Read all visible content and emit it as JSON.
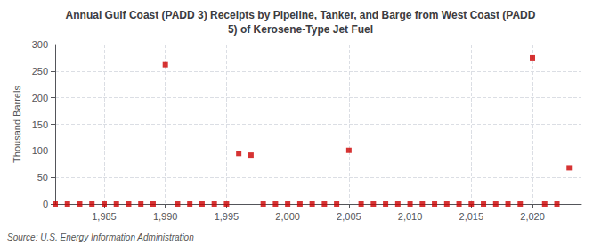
{
  "chart_data": {
    "type": "scatter",
    "title": "Annual Gulf Coast (PADD 3) Receipts by Pipeline, Tanker, and Barge from West Coast (PADD\n5) of Kerosene-Type Jet Fuel",
    "ylabel": "Thousand Barrels",
    "annotation": "Source: U.S. Energy Information Administration",
    "x": [
      1981,
      1982,
      1983,
      1984,
      1985,
      1986,
      1987,
      1988,
      1989,
      1990,
      1991,
      1992,
      1993,
      1994,
      1995,
      1996,
      1997,
      1998,
      1999,
      2000,
      2001,
      2002,
      2003,
      2004,
      2005,
      2006,
      2007,
      2008,
      2009,
      2010,
      2011,
      2012,
      2013,
      2014,
      2015,
      2016,
      2017,
      2018,
      2019,
      2020,
      2021,
      2022,
      2023
    ],
    "values": [
      0,
      0,
      0,
      0,
      0,
      0,
      0,
      0,
      0,
      262,
      0,
      0,
      0,
      0,
      0,
      95,
      92,
      0,
      0,
      0,
      0,
      0,
      0,
      0,
      101,
      0,
      0,
      0,
      0,
      0,
      0,
      0,
      0,
      0,
      0,
      0,
      0,
      0,
      0,
      275,
      0,
      0,
      68
    ],
    "color": "#cc0000",
    "marker": "square",
    "xlim": [
      1981,
      2024
    ],
    "xticks": [
      1985,
      1990,
      1995,
      2000,
      2005,
      2010,
      2015,
      2020
    ],
    "ylim": [
      0,
      300
    ],
    "yticks": [
      0,
      50,
      100,
      150,
      200,
      250,
      300
    ],
    "grid": true
  }
}
